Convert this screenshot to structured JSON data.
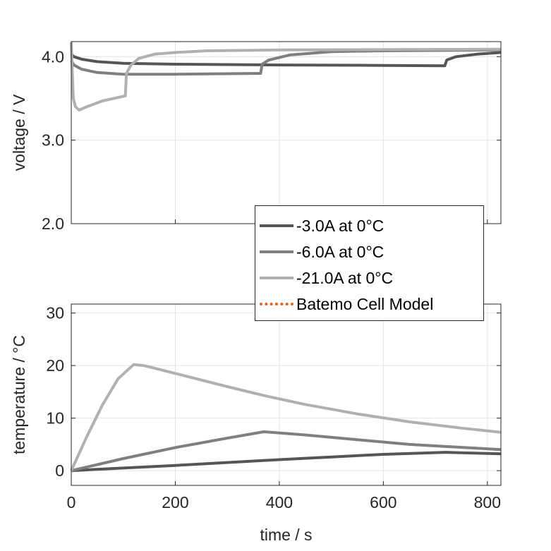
{
  "chart_data": [
    {
      "type": "line",
      "title": "",
      "xlabel": "",
      "ylabel": "voltage / V",
      "xlim": [
        0,
        826
      ],
      "ylim": [
        2.0,
        4.18
      ],
      "yticks": [
        "2.0",
        "3.0",
        "4.0"
      ],
      "yticks_values": [
        2,
        3,
        4
      ],
      "xticks_values": [
        0,
        200,
        400,
        600,
        800
      ],
      "grid": true,
      "series": [
        {
          "name": "-3.0A at 0°C",
          "color": "#555555",
          "x": [
            0,
            5,
            20,
            50,
            100,
            200,
            400,
            600,
            718,
            722,
            740,
            780,
            826
          ],
          "y": [
            4.03,
            4.0,
            3.97,
            3.94,
            3.92,
            3.91,
            3.9,
            3.895,
            3.89,
            3.96,
            4.0,
            4.03,
            4.05
          ]
        },
        {
          "name": "-6.0A at 0°C",
          "color": "#7f7f7f",
          "x": [
            0,
            5,
            20,
            50,
            100,
            200,
            364,
            367,
            380,
            420,
            500,
            600,
            826
          ],
          "y": [
            3.95,
            3.9,
            3.85,
            3.81,
            3.79,
            3.79,
            3.8,
            3.91,
            3.96,
            4.02,
            4.06,
            4.07,
            4.08
          ]
        },
        {
          "name": "-21.0A at 0°C",
          "color": "#b0b0b0",
          "x": [
            0,
            2,
            4,
            8,
            15,
            30,
            60,
            104,
            106,
            115,
            130,
            160,
            200,
            260,
            400,
            826
          ],
          "y": [
            4.17,
            3.8,
            3.5,
            3.4,
            3.36,
            3.4,
            3.47,
            3.53,
            3.8,
            3.9,
            3.98,
            4.03,
            4.05,
            4.07,
            4.08,
            4.09
          ]
        }
      ]
    },
    {
      "type": "line",
      "title": "",
      "xlabel": "time / s",
      "ylabel": "temperature / °C",
      "xlim": [
        0,
        826
      ],
      "ylim": [
        -2.8,
        31.7
      ],
      "yticks": [
        "0",
        "10",
        "20",
        "30"
      ],
      "yticks_values": [
        0,
        10,
        20,
        30
      ],
      "xticks": [
        "0",
        "200",
        "400",
        "600",
        "800"
      ],
      "xticks_values": [
        0,
        200,
        400,
        600,
        800
      ],
      "grid": true,
      "series": [
        {
          "name": "-3.0A at 0°C",
          "color": "#555555",
          "x": [
            0,
            200,
            400,
            600,
            720,
            826
          ],
          "y": [
            0,
            1.0,
            2.1,
            3.1,
            3.5,
            3.2
          ]
        },
        {
          "name": "-6.0A at 0°C",
          "color": "#7f7f7f",
          "x": [
            0,
            100,
            200,
            300,
            370,
            450,
            550,
            650,
            826
          ],
          "y": [
            0,
            2.3,
            4.4,
            6.2,
            7.4,
            6.8,
            5.9,
            5.0,
            4.0
          ]
        },
        {
          "name": "-21.0A at 0°C",
          "color": "#b0b0b0",
          "x": [
            0,
            30,
            60,
            90,
            120,
            140,
            200,
            300,
            370,
            450,
            550,
            650,
            750,
            826
          ],
          "y": [
            0,
            6.5,
            12.5,
            17.5,
            20.2,
            20.0,
            18.5,
            16.0,
            14.3,
            12.6,
            10.8,
            9.3,
            8.1,
            7.3
          ]
        }
      ]
    }
  ],
  "legend": {
    "placement": "center-right",
    "items": [
      {
        "label": "-3.0A at 0°C",
        "color": "#555555",
        "style": "solid"
      },
      {
        "label": "-6.0A at 0°C",
        "color": "#7f7f7f",
        "style": "solid"
      },
      {
        "label": "-21.0A at 0°C",
        "color": "#b0b0b0",
        "style": "solid"
      },
      {
        "label": "Batemo Cell Model",
        "color": "#e8601c",
        "style": "dotted"
      }
    ]
  }
}
